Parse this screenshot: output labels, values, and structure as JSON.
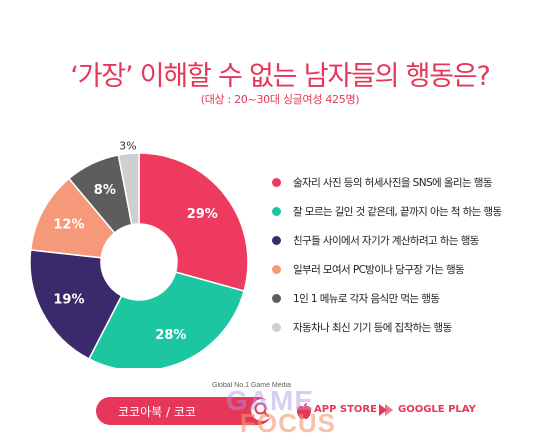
{
  "title": "‘가장’ 이해할 수 없는 남자들의 행동은?",
  "subtitle": "(대상 : 20~30대 싱글여성 425명)",
  "chart_data": {
    "type": "pie",
    "title": "‘가장’ 이해할 수 없는 남자들의 행동은?",
    "subtitle": "(대상 : 20~30대 싱글여성 425명)",
    "unit": "%",
    "donut": true,
    "slices": [
      {
        "label": "술자리 사진 등의 허세사진을 SNS에 올리는 행동",
        "value": 29,
        "value_text": "29%",
        "color": "#ee3a5e"
      },
      {
        "label": "잘 모르는 길인 것 같은데, 끝까지 아는 척 하는 행동",
        "value": 28,
        "value_text": "28%",
        "color": "#1bc6a0"
      },
      {
        "label": "친구들 사이에서 자기가 계산하려고 하는 행동",
        "value": 19,
        "value_text": "19%",
        "color": "#3b2a6b"
      },
      {
        "label": "일부러 모여서 PC방이나 당구장 가는 행동",
        "value": 12,
        "value_text": "12%",
        "color": "#f6997a"
      },
      {
        "label": "1인 1 메뉴로 각자 음식만 먹는 행동",
        "value": 8,
        "value_text": "8%",
        "color": "#5d5d5d"
      },
      {
        "label": "자동차나 최신 기기 등에 집착하는 행동",
        "value": 3,
        "value_text": "3%",
        "color": "#cfcfcf"
      }
    ],
    "legend_position": "right"
  },
  "footer": {
    "brand": "코코아북 / 코코",
    "app_store": "APP STORE",
    "google_play": "GOOGLE PLAY"
  },
  "watermark": {
    "tagline": "Global No.1 Game Media",
    "line1": "GAME",
    "line2": "FOCUS"
  }
}
